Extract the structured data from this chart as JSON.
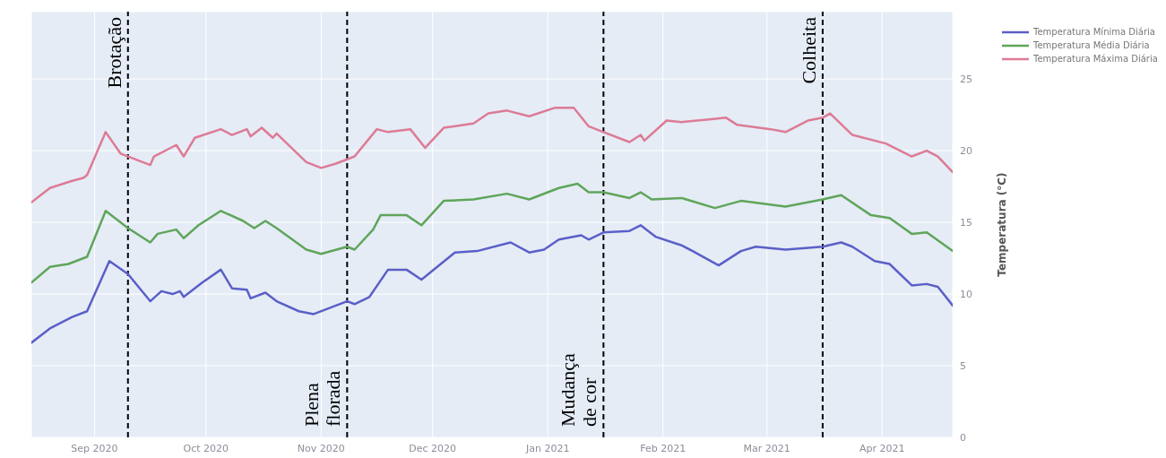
{
  "chart_data": {
    "type": "line",
    "ylabel": "Temperatura (°C)",
    "xlim": [
      "2020-08-15",
      "2021-04-20"
    ],
    "xticks": [
      {
        "value": "2020-09-01",
        "label": "Sep 2020"
      },
      {
        "value": "2020-10-01",
        "label": "Oct 2020"
      },
      {
        "value": "2020-11-01",
        "label": "Nov 2020"
      },
      {
        "value": "2020-12-01",
        "label": "Dec 2020"
      },
      {
        "value": "2021-01-01",
        "label": "Jan 2021"
      },
      {
        "value": "2021-02-01",
        "label": "Feb 2021"
      },
      {
        "value": "2021-03-01",
        "label": "Mar 2021"
      },
      {
        "value": "2021-04-01",
        "label": "Apr 2021"
      }
    ],
    "ylim": [
      0,
      29.7
    ],
    "yticks": [
      0,
      5,
      10,
      15,
      20,
      25
    ],
    "grid": true,
    "legend": "top right",
    "marker": "none",
    "line_style": "solid",
    "series": [
      {
        "name": "Temperatura Mínima Diária",
        "color": "#5b5fc7",
        "x": [
          "2020-08-15",
          "2020-08-20",
          "2020-08-26",
          "2020-08-30",
          "2020-09-05",
          "2020-09-10",
          "2020-09-16",
          "2020-09-19",
          "2020-09-22",
          "2020-09-24",
          "2020-09-25",
          "2020-09-30",
          "2020-10-05",
          "2020-10-08",
          "2020-10-12",
          "2020-10-13",
          "2020-10-17",
          "2020-10-20",
          "2020-10-26",
          "2020-10-30",
          "2020-11-08",
          "2020-11-10",
          "2020-11-14",
          "2020-11-19",
          "2020-11-24",
          "2020-11-28",
          "2020-12-07",
          "2020-12-13",
          "2020-12-22",
          "2020-12-27",
          "2020-12-31",
          "2021-01-04",
          "2021-01-10",
          "2021-01-12",
          "2021-01-16",
          "2021-01-23",
          "2021-01-26",
          "2021-01-30",
          "2021-02-06",
          "2021-02-09",
          "2021-02-16",
          "2021-02-22",
          "2021-02-26",
          "2021-03-06",
          "2021-03-16",
          "2021-03-21",
          "2021-03-24",
          "2021-03-30",
          "2021-04-03",
          "2021-04-09",
          "2021-04-13",
          "2021-04-16",
          "2021-04-20"
        ],
        "values": [
          6.6,
          7.6,
          8.4,
          8.8,
          12.3,
          11.4,
          9.5,
          10.2,
          10.0,
          10.2,
          9.8,
          10.8,
          11.7,
          10.4,
          10.3,
          9.7,
          10.1,
          9.5,
          8.8,
          8.6,
          9.5,
          9.3,
          9.8,
          11.7,
          11.7,
          11.0,
          12.9,
          13.0,
          13.6,
          12.9,
          13.1,
          13.8,
          14.1,
          13.8,
          14.3,
          14.4,
          14.8,
          14.0,
          13.4,
          13.0,
          12.0,
          13.0,
          13.3,
          13.1,
          13.3,
          13.6,
          13.3,
          12.3,
          12.1,
          10.6,
          10.7,
          10.5,
          9.2
        ]
      },
      {
        "name": "Temperatura Média Diária",
        "color": "#5fa55a",
        "x": [
          "2020-08-15",
          "2020-08-20",
          "2020-08-25",
          "2020-08-30",
          "2020-09-04",
          "2020-09-10",
          "2020-09-16",
          "2020-09-18",
          "2020-09-23",
          "2020-09-25",
          "2020-09-29",
          "2020-10-05",
          "2020-10-11",
          "2020-10-14",
          "2020-10-17",
          "2020-10-20",
          "2020-10-28",
          "2020-11-01",
          "2020-11-08",
          "2020-11-10",
          "2020-11-15",
          "2020-11-17",
          "2020-11-24",
          "2020-11-28",
          "2020-12-04",
          "2020-12-12",
          "2020-12-21",
          "2020-12-27",
          "2021-01-04",
          "2021-01-09",
          "2021-01-12",
          "2021-01-16",
          "2021-01-23",
          "2021-01-26",
          "2021-01-29",
          "2021-02-06",
          "2021-02-15",
          "2021-02-22",
          "2021-03-06",
          "2021-03-16",
          "2021-03-21",
          "2021-03-29",
          "2021-04-03",
          "2021-04-09",
          "2021-04-13",
          "2021-04-20"
        ],
        "values": [
          10.8,
          11.9,
          12.1,
          12.6,
          15.8,
          14.6,
          13.6,
          14.2,
          14.5,
          13.9,
          14.8,
          15.8,
          15.1,
          14.6,
          15.1,
          14.6,
          13.1,
          12.8,
          13.3,
          13.1,
          14.5,
          15.5,
          15.5,
          14.8,
          16.5,
          16.6,
          17.0,
          16.6,
          17.4,
          17.7,
          17.1,
          17.1,
          16.7,
          17.1,
          16.6,
          16.7,
          16.0,
          16.5,
          16.1,
          16.6,
          16.9,
          15.5,
          15.3,
          14.2,
          14.3,
          13.0
        ]
      },
      {
        "name": "Temperatura Máxima Diária",
        "color": "#dd7b95",
        "x": [
          "2020-08-15",
          "2020-08-20",
          "2020-08-26",
          "2020-08-29",
          "2020-08-30",
          "2020-09-04",
          "2020-09-08",
          "2020-09-16",
          "2020-09-17",
          "2020-09-23",
          "2020-09-25",
          "2020-09-28",
          "2020-10-05",
          "2020-10-08",
          "2020-10-12",
          "2020-10-13",
          "2020-10-16",
          "2020-10-19",
          "2020-10-20",
          "2020-10-28",
          "2020-11-01",
          "2020-11-05",
          "2020-11-08",
          "2020-11-10",
          "2020-11-16",
          "2020-11-19",
          "2020-11-25",
          "2020-11-29",
          "2020-12-04",
          "2020-12-12",
          "2020-12-16",
          "2020-12-21",
          "2020-12-27",
          "2021-01-03",
          "2021-01-08",
          "2021-01-12",
          "2021-01-16",
          "2021-01-23",
          "2021-01-26",
          "2021-01-27",
          "2021-02-02",
          "2021-02-06",
          "2021-02-14",
          "2021-02-18",
          "2021-02-21",
          "2021-03-02",
          "2021-03-06",
          "2021-03-12",
          "2021-03-16",
          "2021-03-18",
          "2021-03-24",
          "2021-04-02",
          "2021-04-09",
          "2021-04-13",
          "2021-04-16",
          "2021-04-20"
        ],
        "values": [
          16.4,
          17.4,
          17.9,
          18.1,
          18.3,
          21.3,
          19.8,
          19.0,
          19.6,
          20.4,
          19.6,
          20.9,
          21.5,
          21.1,
          21.5,
          21.0,
          21.6,
          20.9,
          21.2,
          19.2,
          18.8,
          19.1,
          19.4,
          19.6,
          21.5,
          21.3,
          21.5,
          20.2,
          21.6,
          21.9,
          22.6,
          22.8,
          22.4,
          23.0,
          23.0,
          21.7,
          21.3,
          20.6,
          21.1,
          20.7,
          22.1,
          22.0,
          22.2,
          22.3,
          21.8,
          21.5,
          21.3,
          22.1,
          22.3,
          22.6,
          21.1,
          20.5,
          19.6,
          20.0,
          19.6,
          18.5
        ]
      }
    ],
    "ref_lines": [
      {
        "axis": "x",
        "value": "2020-09-10",
        "label": "Brotação",
        "color": "#000000",
        "line_style": "dashed"
      },
      {
        "axis": "x",
        "value": "2020-11-08",
        "label": "Plena\nflorada",
        "color": "#000000",
        "line_style": "dashed"
      },
      {
        "axis": "x",
        "value": "2021-01-16",
        "label": "Mudança\nde cor",
        "color": "#000000",
        "line_style": "dashed"
      },
      {
        "axis": "x",
        "value": "2021-03-16",
        "label": "Colheita",
        "color": "#000000",
        "line_style": "dashed"
      }
    ]
  }
}
